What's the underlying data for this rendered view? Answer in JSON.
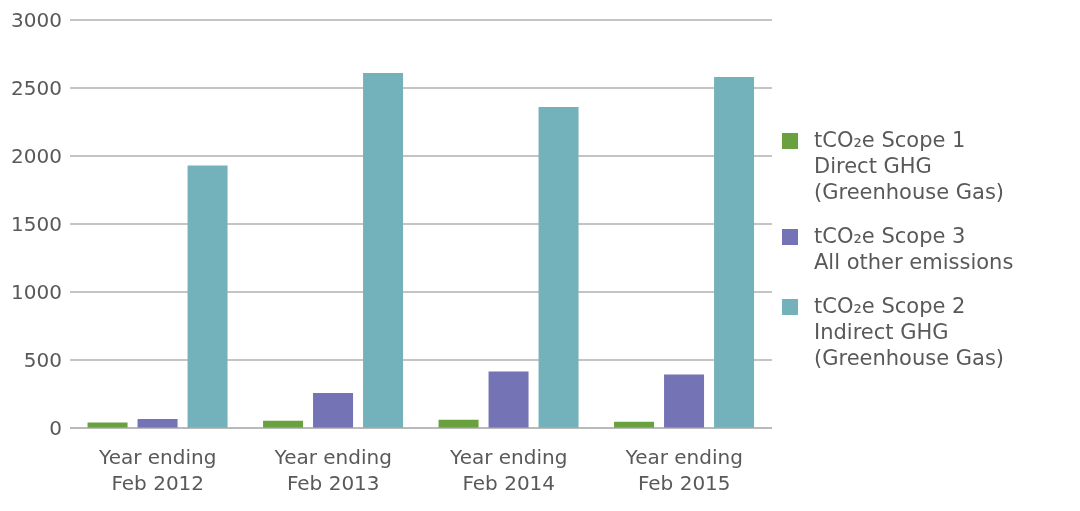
{
  "chart_data": {
    "type": "bar",
    "categories": [
      "Year ending\nFeb 2012",
      "Year ending\nFeb 2013",
      "Year ending\nFeb 2014",
      "Year ending\nFeb 2015"
    ],
    "series": [
      {
        "name": "tCO₂e Scope 1\nDirect GHG\n(Greenhouse Gas)",
        "color": "#6aa13f",
        "values": [
          40,
          53,
          60,
          46
        ]
      },
      {
        "name": "tCO₂e Scope 3\nAll other emissions",
        "color": "#7473b5",
        "values": [
          67,
          257,
          415,
          394
        ]
      },
      {
        "name": "tCO₂e Scope 2\nIndirect GHG\n(Greenhouse Gas)",
        "color": "#74b2bb",
        "values": [
          1930,
          2610,
          2360,
          2580
        ]
      }
    ],
    "ylim": [
      0,
      3000
    ],
    "yticks": [
      0,
      500,
      1000,
      1500,
      2000,
      2500,
      3000
    ],
    "grid": "y",
    "legend": "right"
  }
}
